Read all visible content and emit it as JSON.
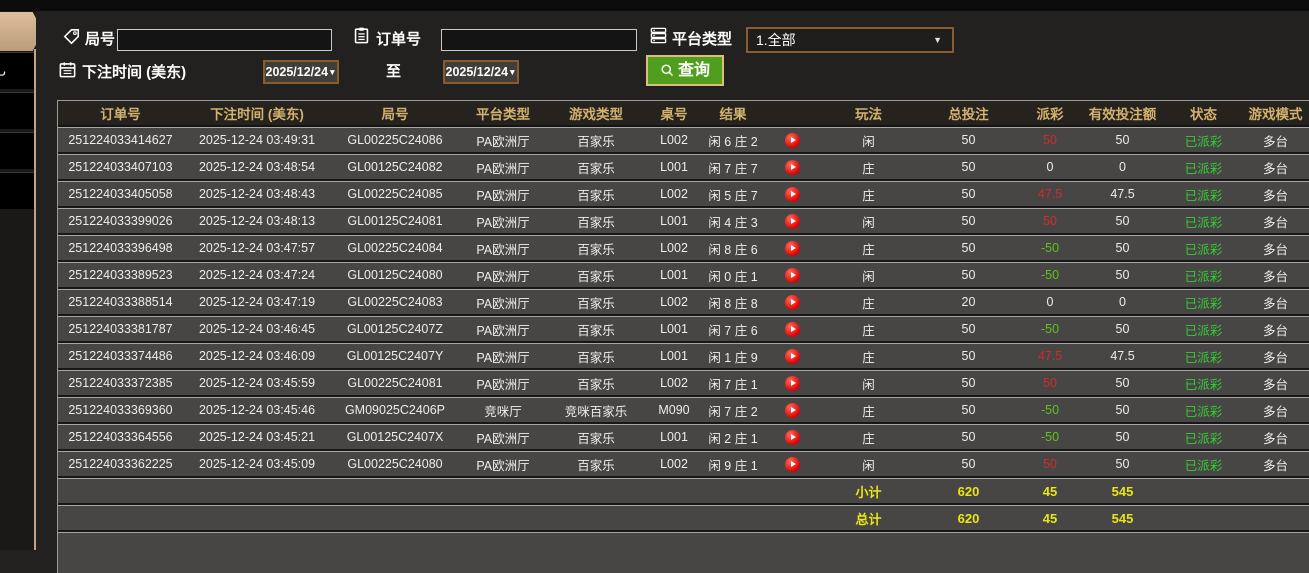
{
  "sidebar": {
    "partial_item_glyph": "乚"
  },
  "filters": {
    "game_no_label": "局号",
    "order_no_label": "订单号",
    "platform_label": "平台类型",
    "platform_value": "1.全部",
    "bet_time_label": "下注时间 (美东)",
    "date_from": "2025/12/24",
    "date_to": "2025/12/24",
    "to_label": "至",
    "query_label": "查询"
  },
  "colors": {
    "query_button_bg": "#4f9e1d",
    "header_text": "#d3b16e",
    "payout_positive": "#cf2b2b",
    "payout_negative": "#5fc31f",
    "status_paid": "#35cc35",
    "totals_text": "#e9e614",
    "accent_border": "#8a5c2a"
  },
  "table": {
    "headers": [
      "订单号",
      "下注时间 (美东)",
      "局号",
      "平台类型",
      "游戏类型",
      "桌号",
      "结果",
      "",
      "玩法",
      "总投注",
      "派彩",
      "有效投注额",
      "状态",
      "游戏模式"
    ],
    "rows": [
      {
        "order_no": "251224033414627",
        "bet_time": "2025-12-24 03:49:31",
        "game_no": "GL00225C24086",
        "platform": "PA欧洲厅",
        "game_type": "百家乐",
        "table_no": "L002",
        "result": "闲 6 庄 2",
        "play": "闲",
        "total_bet": "50",
        "payout": "50",
        "valid_bet": "50",
        "status": "已派彩",
        "mode": "多台"
      },
      {
        "order_no": "251224033407103",
        "bet_time": "2025-12-24 03:48:54",
        "game_no": "GL00125C24082",
        "platform": "PA欧洲厅",
        "game_type": "百家乐",
        "table_no": "L001",
        "result": "闲 7 庄 7",
        "play": "庄",
        "total_bet": "50",
        "payout": "0",
        "valid_bet": "0",
        "status": "已派彩",
        "mode": "多台"
      },
      {
        "order_no": "251224033405058",
        "bet_time": "2025-12-24 03:48:43",
        "game_no": "GL00225C24085",
        "platform": "PA欧洲厅",
        "game_type": "百家乐",
        "table_no": "L002",
        "result": "闲 5 庄 7",
        "play": "庄",
        "total_bet": "50",
        "payout": "47.5",
        "valid_bet": "47.5",
        "status": "已派彩",
        "mode": "多台"
      },
      {
        "order_no": "251224033399026",
        "bet_time": "2025-12-24 03:48:13",
        "game_no": "GL00125C24081",
        "platform": "PA欧洲厅",
        "game_type": "百家乐",
        "table_no": "L001",
        "result": "闲 4 庄 3",
        "play": "闲",
        "total_bet": "50",
        "payout": "50",
        "valid_bet": "50",
        "status": "已派彩",
        "mode": "多台"
      },
      {
        "order_no": "251224033396498",
        "bet_time": "2025-12-24 03:47:57",
        "game_no": "GL00225C24084",
        "platform": "PA欧洲厅",
        "game_type": "百家乐",
        "table_no": "L002",
        "result": "闲 8 庄 6",
        "play": "庄",
        "total_bet": "50",
        "payout": "-50",
        "valid_bet": "50",
        "status": "已派彩",
        "mode": "多台"
      },
      {
        "order_no": "251224033389523",
        "bet_time": "2025-12-24 03:47:24",
        "game_no": "GL00125C24080",
        "platform": "PA欧洲厅",
        "game_type": "百家乐",
        "table_no": "L001",
        "result": "闲 0 庄 1",
        "play": "闲",
        "total_bet": "50",
        "payout": "-50",
        "valid_bet": "50",
        "status": "已派彩",
        "mode": "多台"
      },
      {
        "order_no": "251224033388514",
        "bet_time": "2025-12-24 03:47:19",
        "game_no": "GL00225C24083",
        "platform": "PA欧洲厅",
        "game_type": "百家乐",
        "table_no": "L002",
        "result": "闲 8 庄 8",
        "play": "庄",
        "total_bet": "20",
        "payout": "0",
        "valid_bet": "0",
        "status": "已派彩",
        "mode": "多台"
      },
      {
        "order_no": "251224033381787",
        "bet_time": "2025-12-24 03:46:45",
        "game_no": "GL00125C2407Z",
        "platform": "PA欧洲厅",
        "game_type": "百家乐",
        "table_no": "L001",
        "result": "闲 7 庄 6",
        "play": "庄",
        "total_bet": "50",
        "payout": "-50",
        "valid_bet": "50",
        "status": "已派彩",
        "mode": "多台"
      },
      {
        "order_no": "251224033374486",
        "bet_time": "2025-12-24 03:46:09",
        "game_no": "GL00125C2407Y",
        "platform": "PA欧洲厅",
        "game_type": "百家乐",
        "table_no": "L001",
        "result": "闲 1 庄 9",
        "play": "庄",
        "total_bet": "50",
        "payout": "47.5",
        "valid_bet": "47.5",
        "status": "已派彩",
        "mode": "多台"
      },
      {
        "order_no": "251224033372385",
        "bet_time": "2025-12-24 03:45:59",
        "game_no": "GL00225C24081",
        "platform": "PA欧洲厅",
        "game_type": "百家乐",
        "table_no": "L002",
        "result": "闲 7 庄 1",
        "play": "闲",
        "total_bet": "50",
        "payout": "50",
        "valid_bet": "50",
        "status": "已派彩",
        "mode": "多台"
      },
      {
        "order_no": "251224033369360",
        "bet_time": "2025-12-24 03:45:46",
        "game_no": "GM09025C2406P",
        "platform": "竞咪厅",
        "game_type": "竞咪百家乐",
        "table_no": "M090",
        "result": "闲 7 庄 2",
        "play": "庄",
        "total_bet": "50",
        "payout": "-50",
        "valid_bet": "50",
        "status": "已派彩",
        "mode": "多台"
      },
      {
        "order_no": "251224033364556",
        "bet_time": "2025-12-24 03:45:21",
        "game_no": "GL00125C2407X",
        "platform": "PA欧洲厅",
        "game_type": "百家乐",
        "table_no": "L001",
        "result": "闲 2 庄 1",
        "play": "庄",
        "total_bet": "50",
        "payout": "-50",
        "valid_bet": "50",
        "status": "已派彩",
        "mode": "多台"
      },
      {
        "order_no": "251224033362225",
        "bet_time": "2025-12-24 03:45:09",
        "game_no": "GL00225C24080",
        "platform": "PA欧洲厅",
        "game_type": "百家乐",
        "table_no": "L002",
        "result": "闲 9 庄 1",
        "play": "闲",
        "total_bet": "50",
        "payout": "50",
        "valid_bet": "50",
        "status": "已派彩",
        "mode": "多台"
      }
    ],
    "subtotal": {
      "label": "小计",
      "total_bet": "620",
      "payout": "45",
      "valid_bet": "545"
    },
    "total": {
      "label": "总计",
      "total_bet": "620",
      "payout": "45",
      "valid_bet": "545"
    }
  }
}
